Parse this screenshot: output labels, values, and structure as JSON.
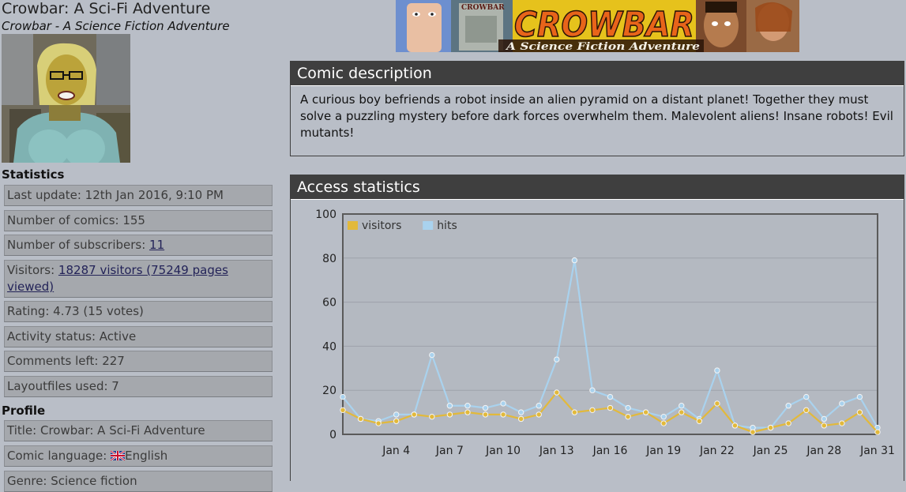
{
  "page": {
    "title": "Crowbar: A Sci-Fi Adventure",
    "subtitle": "Crowbar - A Science Fiction Adventure"
  },
  "banner": {
    "logo_text": "CROWBAR",
    "tagline": "A Science Fiction Adventure",
    "badge_text": "CROWBAR"
  },
  "statistics": {
    "heading": "Statistics",
    "last_update": "Last update: 12th Jan 2016, 9:10 PM",
    "num_comics": "Number of comics: 155",
    "subscribers_label": "Number of subscribers: ",
    "subscribers_link": "11",
    "visitors_label": "Visitors: ",
    "visitors_link": "18287 visitors (75249 pages viewed)",
    "rating": "Rating: 4.73 (15 votes)",
    "activity": "Activity status: Active",
    "comments": "Comments left: 227",
    "layoutfiles": "Layoutfiles used: 7"
  },
  "profile": {
    "heading": "Profile",
    "title": "Title: Crowbar: A Sci-Fi Adventure",
    "language_label": "Comic language: ",
    "language_value": "English",
    "genre": "Genre: Science fiction"
  },
  "description": {
    "heading": "Comic description",
    "text": "A curious boy befriends a robot inside an alien pyramid on a distant planet! Together they must solve a puzzling mystery before dark forces overwhelm them. Malevolent aliens! Insane robots! Evil mutants!"
  },
  "access": {
    "heading": "Access statistics"
  },
  "chart_data": {
    "type": "line",
    "title": "",
    "xlabel": "",
    "ylabel": "",
    "ylim": [
      0,
      100
    ],
    "yticks": [
      0,
      20,
      40,
      60,
      80,
      100
    ],
    "xticks": [
      "Jan 4",
      "Jan 7",
      "Jan 10",
      "Jan 13",
      "Jan 16",
      "Jan 19",
      "Jan 22",
      "Jan 25",
      "Jan 28",
      "Jan 31"
    ],
    "xtick_days": [
      4,
      7,
      10,
      13,
      16,
      19,
      22,
      25,
      28,
      31
    ],
    "x": [
      1,
      2,
      3,
      4,
      5,
      6,
      7,
      8,
      9,
      10,
      11,
      12,
      13,
      14,
      15,
      16,
      17,
      18,
      19,
      20,
      21,
      22,
      23,
      24,
      25,
      26,
      27,
      28,
      29,
      30,
      31
    ],
    "legend_position": "top-left",
    "grid": true,
    "series": [
      {
        "name": "visitors",
        "color": "#e2b93b",
        "values": [
          11,
          7,
          5,
          6,
          9,
          8,
          9,
          10,
          9,
          9,
          7,
          9,
          19,
          10,
          11,
          12,
          8,
          10,
          5,
          10,
          6,
          14,
          4,
          1,
          3,
          5,
          11,
          4,
          5,
          10,
          1
        ]
      },
      {
        "name": "hits",
        "color": "#a9d2ee",
        "values": [
          17,
          7,
          6,
          9,
          9,
          36,
          13,
          13,
          12,
          14,
          10,
          13,
          34,
          79,
          20,
          17,
          12,
          10,
          8,
          13,
          7,
          29,
          4,
          3,
          3,
          13,
          17,
          7,
          14,
          17,
          3
        ]
      }
    ]
  }
}
